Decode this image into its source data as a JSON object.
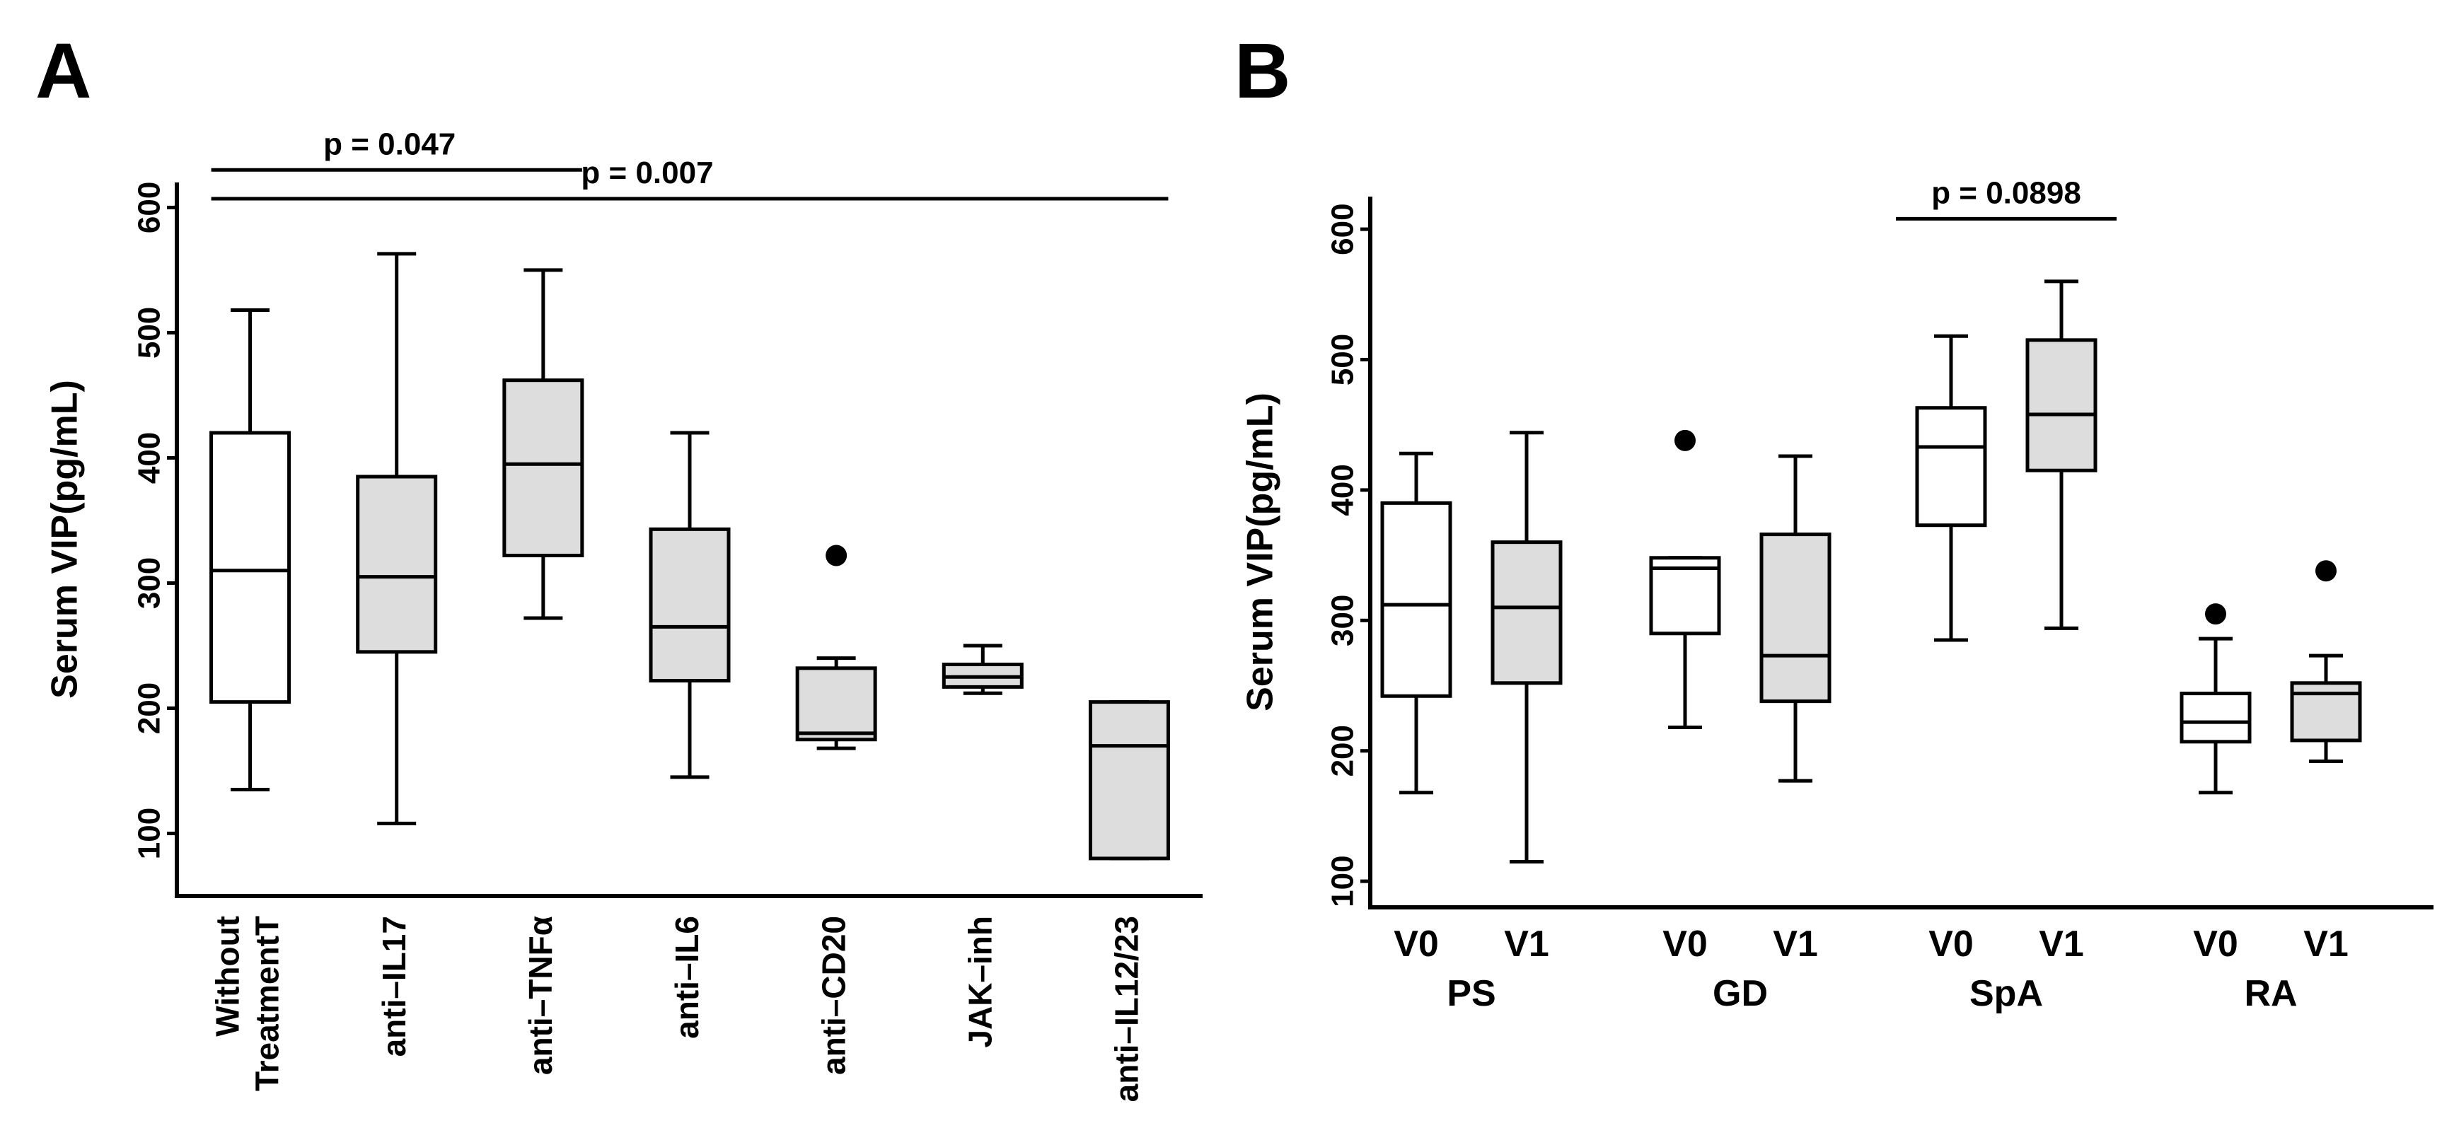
{
  "chart_data": [
    {
      "type": "boxplot",
      "panel": "A",
      "ylabel": "Serum VIP(pg/mL)",
      "ylim": [
        50,
        620
      ],
      "yticks": [
        100,
        200,
        300,
        400,
        500,
        600
      ],
      "categories": [
        "Without TreatmentT",
        "anti–IL17",
        "anti–TNFα",
        "anti–IL6",
        "anti–CD20",
        "JAK–inh",
        "anti–IL12/23"
      ],
      "category_lines": [
        [
          "Without",
          "TreatmentT"
        ],
        [
          "anti–IL17"
        ],
        [
          "anti–TNFα"
        ],
        [
          "anti–IL6"
        ],
        [
          "anti–CD20"
        ],
        [
          "JAK–inh"
        ],
        [
          "anti–IL12/23"
        ]
      ],
      "boxes": [
        {
          "min": 135,
          "q1": 205,
          "median": 310,
          "q3": 420,
          "max": 518,
          "fill": "#ffffff",
          "outliers": []
        },
        {
          "min": 108,
          "q1": 245,
          "median": 305,
          "q3": 385,
          "max": 563,
          "fill": "#dddddd",
          "outliers": []
        },
        {
          "min": 272,
          "q1": 322,
          "median": 395,
          "q3": 462,
          "max": 550,
          "fill": "#dddddd",
          "outliers": []
        },
        {
          "min": 145,
          "q1": 222,
          "median": 265,
          "q3": 343,
          "max": 420,
          "fill": "#dddddd",
          "outliers": []
        },
        {
          "min": 168,
          "q1": 175,
          "median": 180,
          "q3": 232,
          "max": 240,
          "fill": "#dddddd",
          "outliers": [
            322
          ]
        },
        {
          "min": 212,
          "q1": 217,
          "median": 225,
          "q3": 235,
          "max": 250,
          "fill": "#dddddd",
          "outliers": []
        },
        {
          "min": 80,
          "q1": 80,
          "median": 170,
          "q3": 205,
          "max": 205,
          "fill": "#dddddd",
          "outliers": []
        }
      ],
      "annotations": [
        {
          "text": "p = 0.047",
          "from": 0,
          "to": 2,
          "y": 630
        },
        {
          "text": "p = 0.007",
          "from": 0,
          "to": 6,
          "y": 607
        }
      ]
    },
    {
      "type": "boxplot",
      "panel": "B",
      "ylabel": "Serum VIP(pg/mL)",
      "ylim": [
        80,
        625
      ],
      "yticks": [
        100,
        200,
        300,
        400,
        500,
        600
      ],
      "groups": [
        "PS",
        "GD",
        "SpA",
        "RA"
      ],
      "visits": [
        "V0",
        "V1"
      ],
      "boxes": [
        {
          "group": "PS",
          "visit": "V0",
          "min": 168,
          "q1": 242,
          "median": 312,
          "q3": 390,
          "max": 428,
          "fill": "#ffffff",
          "outliers": []
        },
        {
          "group": "PS",
          "visit": "V1",
          "min": 115,
          "q1": 252,
          "median": 310,
          "q3": 360,
          "max": 444,
          "fill": "#dddddd",
          "outliers": []
        },
        {
          "group": "GD",
          "visit": "V0",
          "min": 218,
          "q1": 290,
          "median": 340,
          "q3": 348,
          "max": 348,
          "fill": "#ffffff",
          "outliers": [
            438
          ]
        },
        {
          "group": "GD",
          "visit": "V1",
          "min": 177,
          "q1": 238,
          "median": 273,
          "q3": 366,
          "max": 426,
          "fill": "#dddddd",
          "outliers": []
        },
        {
          "group": "SpA",
          "visit": "V0",
          "min": 285,
          "q1": 373,
          "median": 433,
          "q3": 463,
          "max": 518,
          "fill": "#ffffff",
          "outliers": []
        },
        {
          "group": "SpA",
          "visit": "V1",
          "min": 294,
          "q1": 415,
          "median": 458,
          "q3": 515,
          "max": 560,
          "fill": "#dddddd",
          "outliers": []
        },
        {
          "group": "RA",
          "visit": "V0",
          "min": 168,
          "q1": 207,
          "median": 222,
          "q3": 244,
          "max": 286,
          "fill": "#ffffff",
          "outliers": [
            305
          ]
        },
        {
          "group": "RA",
          "visit": "V1",
          "min": 192,
          "q1": 208,
          "median": 244,
          "q3": 252,
          "max": 273,
          "fill": "#dddddd",
          "outliers": [
            338
          ]
        }
      ],
      "annotations": [
        {
          "text": "p = 0.0898",
          "from": 4,
          "to": 5,
          "y": 608
        }
      ]
    }
  ]
}
